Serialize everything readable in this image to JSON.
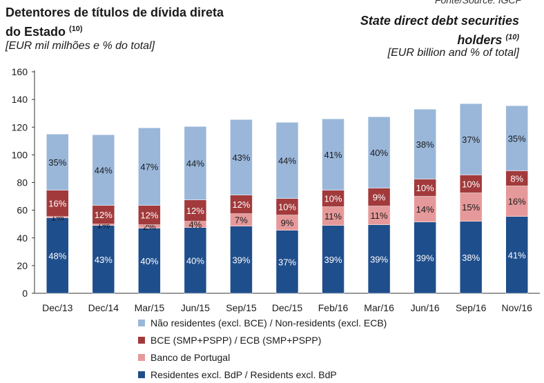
{
  "header": {
    "title_pt_line1": "Detentores de títulos de dívida direta",
    "title_pt_line2": "do Estado",
    "note_ref": "(10)",
    "unit_pt": "[EUR mil milhões e % do total]",
    "source": "Fonte/Source: IGCP",
    "title_en_line1": "State direct debt securities",
    "title_en_line2": "holders",
    "unit_en": "[EUR billion and % of total]"
  },
  "chart_data": {
    "type": "bar",
    "stacked": true,
    "categories": [
      "Dec/13",
      "Dec/14",
      "Mar/15",
      "Jun/15",
      "Sep/15",
      "Dec/15",
      "Feb/16",
      "Mar/16",
      "Jun/16",
      "Sep/16",
      "Nov/16"
    ],
    "ylim": [
      0,
      160
    ],
    "yticks": [
      0,
      20,
      40,
      60,
      80,
      100,
      120,
      140,
      160
    ],
    "series": [
      {
        "name": "Residentes excl. BdP / Residents excl. BdP",
        "color": "#1f4e8c",
        "values": [
          54.5,
          49.0,
          47.0,
          47.5,
          48.5,
          45.5,
          49.0,
          49.5,
          51.5,
          52.0,
          55.5
        ],
        "labels": [
          "48%",
          "43%",
          "40%",
          "40%",
          "39%",
          "37%",
          "39%",
          "39%",
          "39%",
          "38%",
          "41%"
        ]
      },
      {
        "name": "Banco de Portugal",
        "color": "#e6999a",
        "values": [
          1.0,
          1.0,
          2.5,
          4.5,
          9.0,
          11.0,
          13.5,
          13.5,
          18.5,
          20.5,
          22.0
        ],
        "labels": [
          "1%",
          "1%",
          "2%",
          "4%",
          "7%",
          "9%",
          "11%",
          "11%",
          "14%",
          "15%",
          "16%"
        ]
      },
      {
        "name": "BCE (SMP+PSPP) / ECB (SMP+PSPP)",
        "color": "#a23a3c",
        "values": [
          19.0,
          13.5,
          14.0,
          15.5,
          13.5,
          12.0,
          12.0,
          13.0,
          12.5,
          13.0,
          11.0
        ],
        "labels": [
          "16%",
          "12%",
          "12%",
          "12%",
          "12%",
          "10%",
          "10%",
          "9%",
          "10%",
          "10%",
          "8%"
        ]
      },
      {
        "name": "Não residentes (excl. BCE) / Non-residents (excl. ECB)",
        "color": "#9ab7da",
        "values": [
          40.5,
          51.0,
          56.0,
          53.0,
          54.5,
          55.0,
          51.5,
          51.5,
          50.5,
          51.5,
          47.0
        ],
        "labels": [
          "35%",
          "44%",
          "47%",
          "44%",
          "43%",
          "44%",
          "41%",
          "40%",
          "38%",
          "37%",
          "35%"
        ]
      }
    ],
    "legend_order": [
      3,
      2,
      1,
      0
    ],
    "legend_position": "bottom",
    "grid": false
  }
}
